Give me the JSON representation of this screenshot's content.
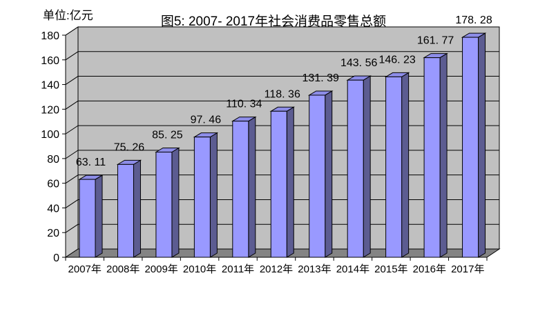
{
  "chart_data": {
    "type": "bar",
    "variant": "3d-column",
    "title": "图5: 2007- 2017年社会消费品零售总额",
    "unit_label": "单位:亿元",
    "categories": [
      "2007年",
      "2008年",
      "2009年",
      "2010年",
      "2011年",
      "2012年",
      "2013年",
      "2014年",
      "2015年",
      "2016年",
      "2017年"
    ],
    "values": [
      63.11,
      75.26,
      85.25,
      97.46,
      110.34,
      118.36,
      131.39,
      143.56,
      146.23,
      161.77,
      178.28
    ],
    "value_labels": [
      "63. 11",
      "75. 26",
      "85. 25",
      "97. 46",
      "110. 34",
      "118. 36",
      "131. 39",
      "143. 56",
      "146. 23",
      "161. 77",
      "178. 28"
    ],
    "ylim": [
      0,
      180
    ],
    "ytick_step": 20,
    "ytick_labels": [
      "0",
      "20",
      "40",
      "60",
      "80",
      "100",
      "120",
      "140",
      "160",
      "180"
    ],
    "grid": true,
    "legend_position": "none",
    "colors": {
      "bar_face": "#9999ff",
      "bar_side": "#5c5c91",
      "bar_top": "#8d8de8",
      "back_wall": "#c0c0c0",
      "side_wall": "#c9c9c9",
      "floor": "#848484",
      "outline": "#000000",
      "text": "#000000",
      "background": "#ffffff"
    }
  }
}
